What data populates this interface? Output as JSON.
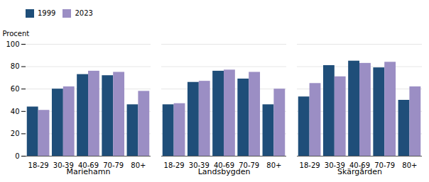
{
  "chart_data": {
    "type": "bar",
    "ylabel": "Procent",
    "groups": [
      "Mariehamn",
      "Landsbygden",
      "Skärgården"
    ],
    "categories": [
      "18-29",
      "30-39",
      "40-69",
      "70-79",
      "80+"
    ],
    "series": [
      {
        "name": "1999",
        "color": "#1F4E79",
        "values": [
          [
            44,
            60,
            73,
            72,
            46
          ],
          [
            46,
            66,
            76,
            69,
            46
          ],
          [
            53,
            81,
            85,
            79,
            50
          ]
        ]
      },
      {
        "name": "2023",
        "color": "#9B8EC4",
        "values": [
          [
            41,
            62,
            76,
            75,
            58
          ],
          [
            47,
            67,
            77,
            75,
            60
          ],
          [
            65,
            71,
            83,
            84,
            62
          ]
        ]
      }
    ],
    "ylim": [
      0,
      100
    ],
    "yticks": [
      0,
      20,
      40,
      60,
      80,
      100
    ],
    "grid": true,
    "legend": "upper left"
  }
}
